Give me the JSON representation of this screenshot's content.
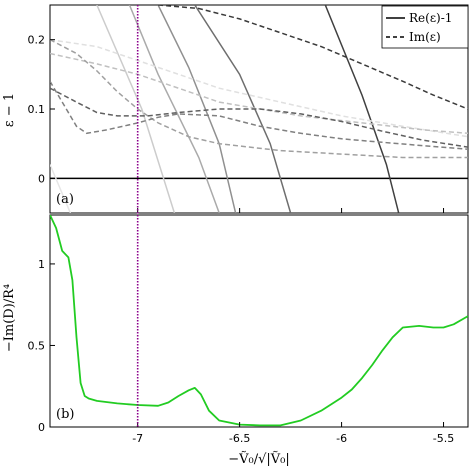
{
  "chart_data": [
    {
      "panel": "top",
      "type": "line",
      "tag": "(a)",
      "ylabel": "ε − 1",
      "xlim": [
        -7.43,
        -5.38
      ],
      "ylim": [
        -0.05,
        0.25
      ],
      "yticks": [
        0,
        0.1,
        0.2
      ],
      "ytick_labels": [
        "0",
        "0.1",
        "0.2"
      ],
      "grid": false,
      "legend": {
        "placement": "top-right",
        "entries": [
          {
            "label": "Re(ε)-1",
            "style": "solid"
          },
          {
            "label": "Im(ε)",
            "style": "dashed"
          }
        ]
      },
      "series": [
        {
          "style": "solid",
          "color": "#e6e6e6",
          "x": [
            -7.43,
            -7.33
          ],
          "y": [
            0.02,
            -0.05
          ]
        },
        {
          "style": "solid",
          "color": "#cccccc",
          "x": [
            -7.2,
            -6.98,
            -6.82
          ],
          "y": [
            0.25,
            0.1,
            -0.05
          ]
        },
        {
          "style": "solid",
          "color": "#aaaaaa",
          "x": [
            -7.04,
            -6.9,
            -6.7,
            -6.6
          ],
          "y": [
            0.25,
            0.15,
            0.03,
            -0.05
          ]
        },
        {
          "style": "solid",
          "color": "#909090",
          "x": [
            -6.9,
            -6.75,
            -6.6,
            -6.52
          ],
          "y": [
            0.25,
            0.16,
            0.05,
            -0.05
          ]
        },
        {
          "style": "solid",
          "color": "#6e6e6e",
          "x": [
            -6.72,
            -6.5,
            -6.35,
            -6.25
          ],
          "y": [
            0.25,
            0.15,
            0.05,
            -0.05
          ]
        },
        {
          "style": "solid",
          "color": "#404040",
          "x": [
            -6.08,
            -5.9,
            -5.78,
            -5.72
          ],
          "y": [
            0.25,
            0.12,
            0.02,
            -0.05
          ]
        },
        {
          "style": "dashed",
          "color": "#e0e0e0",
          "x": [
            -7.43,
            -7.2,
            -7.0,
            -6.8,
            -6.6,
            -6.3,
            -6.0,
            -5.7,
            -5.38
          ],
          "y": [
            0.2,
            0.19,
            0.17,
            0.15,
            0.13,
            0.11,
            0.09,
            0.075,
            0.06
          ]
        },
        {
          "style": "dashed",
          "color": "#c0c0c0",
          "x": [
            -7.43,
            -7.2,
            -7.0,
            -6.8,
            -6.6,
            -6.4,
            -6.2,
            -5.9,
            -5.6,
            -5.38
          ],
          "y": [
            0.18,
            0.165,
            0.15,
            0.13,
            0.11,
            0.1,
            0.09,
            0.08,
            0.07,
            0.065
          ]
        },
        {
          "style": "dashed",
          "color": "#a0a0a0",
          "x": [
            -7.43,
            -7.3,
            -7.2,
            -7.1,
            -7.0,
            -6.9,
            -6.75,
            -6.6,
            -6.3,
            -6.0,
            -5.7,
            -5.38
          ],
          "y": [
            0.2,
            0.18,
            0.155,
            0.125,
            0.1,
            0.08,
            0.06,
            0.05,
            0.04,
            0.035,
            0.03,
            0.03
          ]
        },
        {
          "style": "dashed",
          "color": "#808080",
          "x": [
            -7.43,
            -7.35,
            -7.3,
            -7.25,
            -7.15,
            -7.0,
            -6.9,
            -6.8,
            -6.6,
            -6.4,
            -6.2,
            -6.0,
            -5.8,
            -5.6,
            -5.38
          ],
          "y": [
            0.14,
            0.1,
            0.075,
            0.065,
            0.07,
            0.08,
            0.088,
            0.093,
            0.09,
            0.075,
            0.065,
            0.057,
            0.052,
            0.047,
            0.042
          ]
        },
        {
          "style": "dashed",
          "color": "#606060",
          "x": [
            -7.43,
            -7.3,
            -7.2,
            -7.1,
            -6.95,
            -6.8,
            -6.6,
            -6.4,
            -6.2,
            -6.0,
            -5.8,
            -5.6,
            -5.38
          ],
          "y": [
            0.13,
            0.11,
            0.095,
            0.09,
            0.09,
            0.095,
            0.1,
            0.1,
            0.093,
            0.082,
            0.068,
            0.055,
            0.045
          ]
        },
        {
          "style": "dashed",
          "color": "#3a3a3a",
          "x": [
            -6.9,
            -6.7,
            -6.5,
            -6.3,
            -6.1,
            -5.9,
            -5.7,
            -5.55,
            -5.38
          ],
          "y": [
            0.25,
            0.245,
            0.23,
            0.21,
            0.19,
            0.165,
            0.14,
            0.12,
            0.1
          ]
        }
      ],
      "zero_line": 0
    },
    {
      "panel": "bottom",
      "type": "line",
      "tag": "(b)",
      "ylabel": "−Im(D)/R⁴",
      "xlabel": "−Ṽ₀/√|Ṽ₀|",
      "xlim": [
        -7.43,
        -5.38
      ],
      "ylim": [
        0,
        1.3
      ],
      "xticks": [
        -7,
        -6.5,
        -6,
        -5.5
      ],
      "xtick_labels": [
        "-7",
        "-6.5",
        "-6",
        "-5.5"
      ],
      "yticks": [
        0,
        0.5,
        1
      ],
      "ytick_labels": [
        "0",
        "0.5",
        "1"
      ],
      "grid": false,
      "series": [
        {
          "style": "solid",
          "color": "#22cc22",
          "x": [
            -7.43,
            -7.4,
            -7.37,
            -7.34,
            -7.32,
            -7.3,
            -7.28,
            -7.26,
            -7.24,
            -7.2,
            -7.1,
            -7.0,
            -6.9,
            -6.85,
            -6.8,
            -6.75,
            -6.72,
            -6.69,
            -6.65,
            -6.6,
            -6.5,
            -6.4,
            -6.3,
            -6.2,
            -6.1,
            -6.0,
            -5.95,
            -5.9,
            -5.85,
            -5.8,
            -5.75,
            -5.7,
            -5.62,
            -5.55,
            -5.5,
            -5.45,
            -5.38
          ],
          "y": [
            1.3,
            1.22,
            1.08,
            1.04,
            0.9,
            0.55,
            0.27,
            0.19,
            0.175,
            0.16,
            0.145,
            0.135,
            0.13,
            0.15,
            0.19,
            0.225,
            0.24,
            0.2,
            0.1,
            0.04,
            0.015,
            0.01,
            0.01,
            0.04,
            0.1,
            0.18,
            0.23,
            0.3,
            0.38,
            0.47,
            0.55,
            0.61,
            0.62,
            0.61,
            0.61,
            0.63,
            0.68
          ]
        }
      ]
    }
  ],
  "marker_line": {
    "x": -7.0,
    "color": "#8b008b",
    "style": "dotted"
  }
}
